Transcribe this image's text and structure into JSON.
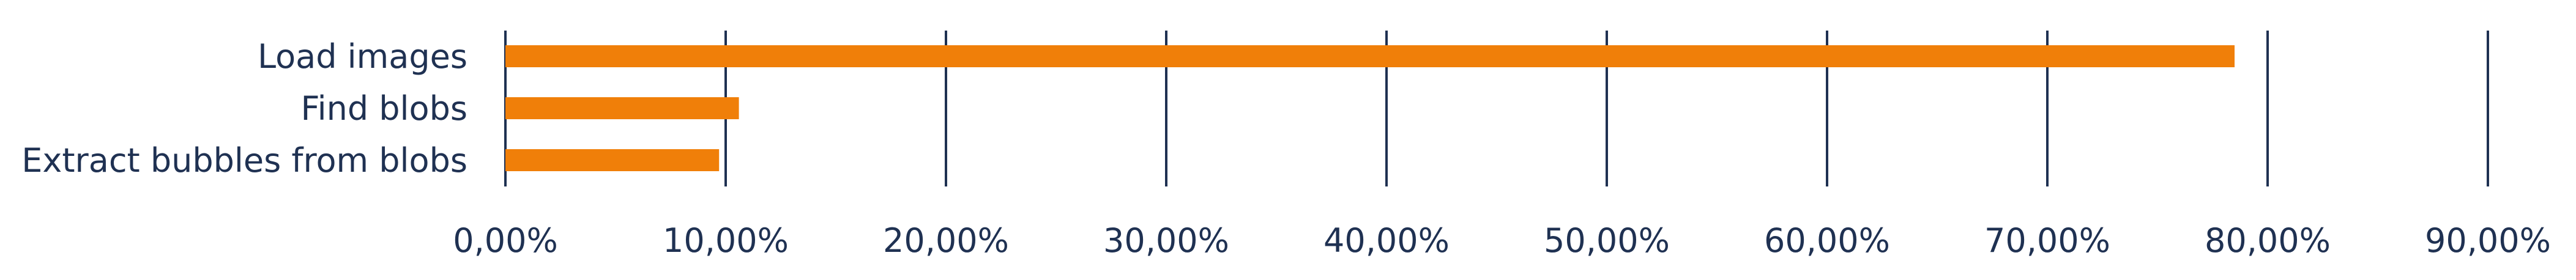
{
  "chart_data": {
    "type": "bar",
    "orientation": "horizontal",
    "title": "",
    "xlabel": "",
    "ylabel": "",
    "categories": [
      "Load images",
      "Find blobs",
      "Extract bubbles from blobs"
    ],
    "values": [
      78.5,
      10.6,
      9.7
    ],
    "xlim": [
      0,
      90
    ],
    "ticks": [
      0,
      10,
      20,
      30,
      40,
      50,
      60,
      70,
      80,
      90
    ],
    "tick_labels": [
      "0,00%",
      "10,00%",
      "20,00%",
      "30,00%",
      "40,00%",
      "50,00%",
      "60,00%",
      "70,00%",
      "80,00%",
      "90,00%"
    ],
    "grid": "vertical",
    "legend": "none",
    "colors": {
      "bar": "#f07f09",
      "grid": "#1f3152",
      "text": "#1f3152"
    }
  }
}
